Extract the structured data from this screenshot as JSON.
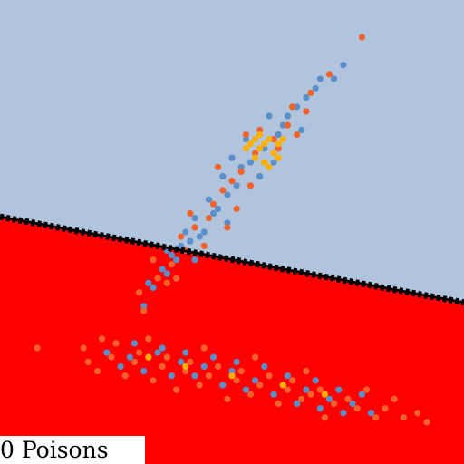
{
  "chart_data": {
    "type": "scatter",
    "title": "",
    "xlabel": "",
    "ylabel": "",
    "xlim": [
      0,
      10
    ],
    "ylim": [
      0,
      10
    ],
    "grid": false,
    "legend": "none",
    "annotation": "0 Poisons",
    "regions": [
      {
        "name": "upper-class-region",
        "color": "#b0c4de"
      },
      {
        "name": "lower-class-region",
        "color": "#ff0000"
      }
    ],
    "decision_boundary": {
      "style": "dashed-black",
      "points": [
        [
          0,
          5.33
        ],
        [
          10,
          3.48
        ]
      ]
    },
    "series": [
      {
        "name": "upper-cluster-steelblue",
        "color": "#5b8fc9",
        "points": [
          [
            7.4,
            8.6
          ],
          [
            6.8,
            8.1
          ],
          [
            6.4,
            7.7
          ],
          [
            6.0,
            7.1
          ],
          [
            5.7,
            6.8
          ],
          [
            5.4,
            6.5
          ],
          [
            5.1,
            6.0
          ],
          [
            4.9,
            5.8
          ],
          [
            4.6,
            5.4
          ],
          [
            4.4,
            5.0
          ],
          [
            4.1,
            4.8
          ],
          [
            3.8,
            4.4
          ],
          [
            3.6,
            4.1
          ],
          [
            3.3,
            3.8
          ],
          [
            3.1,
            3.4
          ],
          [
            3.6,
            4.6
          ],
          [
            4.2,
            5.3
          ],
          [
            4.8,
            6.2
          ],
          [
            5.3,
            7.0
          ],
          [
            5.9,
            6.5
          ],
          [
            6.2,
            7.5
          ],
          [
            6.6,
            7.9
          ],
          [
            5.0,
            6.6
          ],
          [
            4.5,
            5.7
          ],
          [
            4.0,
            5.0
          ],
          [
            3.5,
            4.2
          ],
          [
            3.9,
            4.7
          ],
          [
            5.6,
            6.2
          ],
          [
            6.1,
            7.3
          ],
          [
            6.9,
            8.3
          ],
          [
            7.2,
            8.3
          ],
          [
            5.8,
            7.5
          ],
          [
            4.7,
            5.5
          ],
          [
            4.3,
            4.9
          ],
          [
            3.7,
            4.5
          ],
          [
            3.2,
            3.9
          ],
          [
            5.2,
            6.4
          ],
          [
            6.5,
            7.2
          ],
          [
            4.9,
            5.2
          ],
          [
            4.2,
            4.4
          ]
        ]
      },
      {
        "name": "upper-cluster-orange",
        "color": "#f4622c",
        "points": [
          [
            7.8,
            9.2
          ],
          [
            7.1,
            8.4
          ],
          [
            6.6,
            7.6
          ],
          [
            6.2,
            7.3
          ],
          [
            5.9,
            7.0
          ],
          [
            5.5,
            6.7
          ],
          [
            5.2,
            6.3
          ],
          [
            4.8,
            5.9
          ],
          [
            4.5,
            5.3
          ],
          [
            4.2,
            5.1
          ],
          [
            4.0,
            4.6
          ],
          [
            3.7,
            4.3
          ],
          [
            3.4,
            4.0
          ],
          [
            3.0,
            3.7
          ],
          [
            3.9,
            4.9
          ],
          [
            4.6,
            5.6
          ],
          [
            5.0,
            6.1
          ],
          [
            5.7,
            6.5
          ],
          [
            6.3,
            7.7
          ],
          [
            6.0,
            6.8
          ],
          [
            5.4,
            6.0
          ],
          [
            4.4,
            4.7
          ],
          [
            3.6,
            3.9
          ],
          [
            3.3,
            4.4
          ],
          [
            4.7,
            6.4
          ],
          [
            5.3,
            7.1
          ],
          [
            6.7,
            8.0
          ],
          [
            5.1,
            5.5
          ],
          [
            4.1,
            5.4
          ],
          [
            3.8,
            4.0
          ],
          [
            3.1,
            3.3
          ],
          [
            4.9,
            5.1
          ],
          [
            5.6,
            7.2
          ],
          [
            6.4,
            7.1
          ]
        ]
      },
      {
        "name": "upper-cluster-gold",
        "color": "#ffb000",
        "points": [
          [
            5.4,
            6.9
          ],
          [
            5.6,
            6.8
          ],
          [
            5.8,
            7.0
          ],
          [
            5.5,
            6.6
          ],
          [
            5.9,
            6.7
          ],
          [
            6.0,
            6.9
          ],
          [
            5.7,
            6.5
          ],
          [
            5.3,
            6.8
          ],
          [
            5.6,
            7.1
          ],
          [
            6.1,
            7.0
          ],
          [
            5.8,
            6.4
          ],
          [
            5.5,
            7.0
          ],
          [
            6.0,
            6.6
          ],
          [
            5.7,
            6.9
          ]
        ]
      },
      {
        "name": "lower-cluster-steelblue",
        "color": "#5b8fc9",
        "points": [
          [
            2.3,
            2.4
          ],
          [
            2.8,
            2.3
          ],
          [
            3.4,
            2.4
          ],
          [
            3.9,
            2.2
          ],
          [
            4.4,
            2.1
          ],
          [
            5.0,
            2.0
          ],
          [
            5.5,
            1.8
          ],
          [
            6.1,
            1.7
          ],
          [
            6.6,
            1.6
          ],
          [
            7.1,
            1.4
          ],
          [
            7.6,
            1.3
          ],
          [
            8.0,
            1.1
          ],
          [
            2.6,
            2.1
          ],
          [
            3.1,
            2.0
          ],
          [
            3.7,
            1.9
          ],
          [
            4.2,
            1.9
          ],
          [
            4.8,
            1.7
          ],
          [
            5.3,
            1.6
          ],
          [
            5.9,
            1.5
          ],
          [
            6.4,
            1.3
          ],
          [
            6.9,
            1.2
          ],
          [
            7.4,
            1.1
          ],
          [
            3.5,
            2.5
          ],
          [
            4.6,
            2.3
          ],
          [
            5.7,
            2.1
          ],
          [
            6.8,
            1.8
          ],
          [
            7.8,
            1.5
          ],
          [
            2.9,
            2.6
          ],
          [
            4.0,
            2.4
          ],
          [
            5.1,
            2.2
          ],
          [
            6.2,
            1.9
          ],
          [
            7.3,
            1.6
          ]
        ]
      },
      {
        "name": "lower-cluster-orange",
        "color": "#f4622c",
        "points": [
          [
            0.8,
            2.5
          ],
          [
            1.8,
            2.5
          ],
          [
            2.4,
            2.3
          ],
          [
            2.9,
            2.2
          ],
          [
            3.5,
            2.1
          ],
          [
            4.0,
            2.0
          ],
          [
            4.5,
            1.9
          ],
          [
            5.1,
            1.8
          ],
          [
            5.6,
            1.7
          ],
          [
            6.2,
            1.6
          ],
          [
            6.7,
            1.5
          ],
          [
            7.2,
            1.3
          ],
          [
            7.7,
            1.2
          ],
          [
            8.3,
            1.2
          ],
          [
            8.7,
            1.0
          ],
          [
            9.2,
            0.9
          ],
          [
            2.5,
            2.6
          ],
          [
            3.0,
            2.4
          ],
          [
            3.6,
            2.3
          ],
          [
            4.1,
            2.2
          ],
          [
            4.7,
            2.1
          ],
          [
            5.2,
            2.0
          ],
          [
            5.8,
            1.9
          ],
          [
            6.3,
            1.8
          ],
          [
            6.9,
            1.6
          ],
          [
            7.5,
            1.4
          ],
          [
            3.3,
            1.8
          ],
          [
            4.3,
            1.7
          ],
          [
            5.4,
            1.5
          ],
          [
            6.5,
            1.4
          ],
          [
            7.0,
            1.0
          ],
          [
            2.7,
            1.9
          ],
          [
            3.8,
            1.6
          ],
          [
            4.9,
            1.4
          ],
          [
            6.0,
            1.3
          ],
          [
            8.1,
            1.0
          ],
          [
            2.1,
            2.0
          ],
          [
            1.9,
            2.2
          ],
          [
            4.4,
            2.5
          ],
          [
            6.6,
            2.0
          ],
          [
            8.5,
            1.4
          ],
          [
            5.5,
            2.3
          ],
          [
            7.9,
            1.6
          ],
          [
            3.2,
            2.7
          ],
          [
            9.0,
            1.1
          ],
          [
            2.2,
            2.7
          ]
        ]
      },
      {
        "name": "lower-cluster-gold",
        "color": "#ffb000",
        "points": [
          [
            3.2,
            2.3
          ],
          [
            4.0,
            2.1
          ],
          [
            5.0,
            1.9
          ],
          [
            6.1,
            1.7
          ],
          [
            7.0,
            1.5
          ]
        ]
      }
    ]
  }
}
